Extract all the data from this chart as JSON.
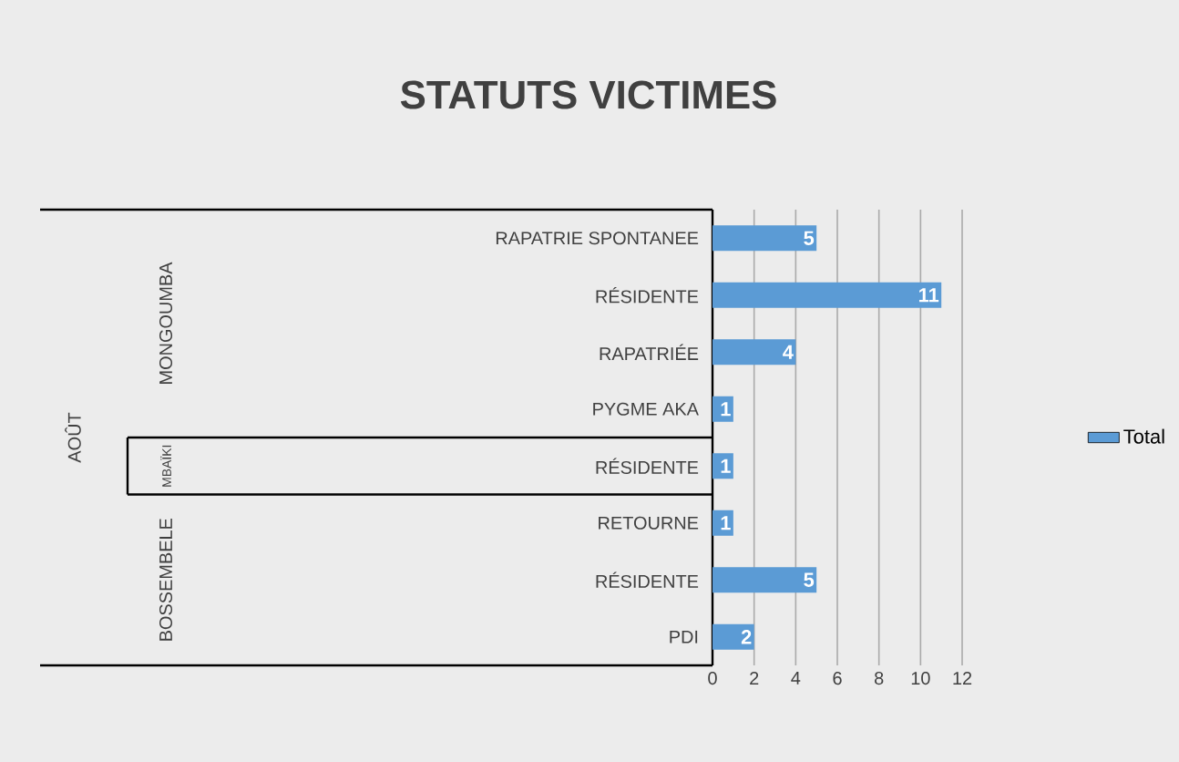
{
  "chart_data": {
    "type": "bar",
    "orientation": "horizontal",
    "title": "STATUTS VICTIMES",
    "categories": [
      "RAPATRIE SPONTANEE",
      "RÉSIDENTE",
      "RAPATRIÉE",
      "PYGME AKA",
      "RÉSIDENTE",
      "RETOURNE",
      "RÉSIDENTE",
      "PDI"
    ],
    "series": [
      {
        "name": "Total",
        "color": "#5b9bd5",
        "values": [
          5,
          11,
          4,
          1,
          1,
          1,
          5,
          2
        ]
      }
    ],
    "xlim": [
      0,
      12
    ],
    "xticks": [
      0,
      2,
      4,
      6,
      8,
      10,
      12
    ],
    "grid": "x",
    "legend": "right",
    "data_labels": true,
    "annotations": [
      "AOÛT",
      "MONGOUMBA",
      "MBAÏKI",
      "BOSSEMBELE"
    ]
  }
}
